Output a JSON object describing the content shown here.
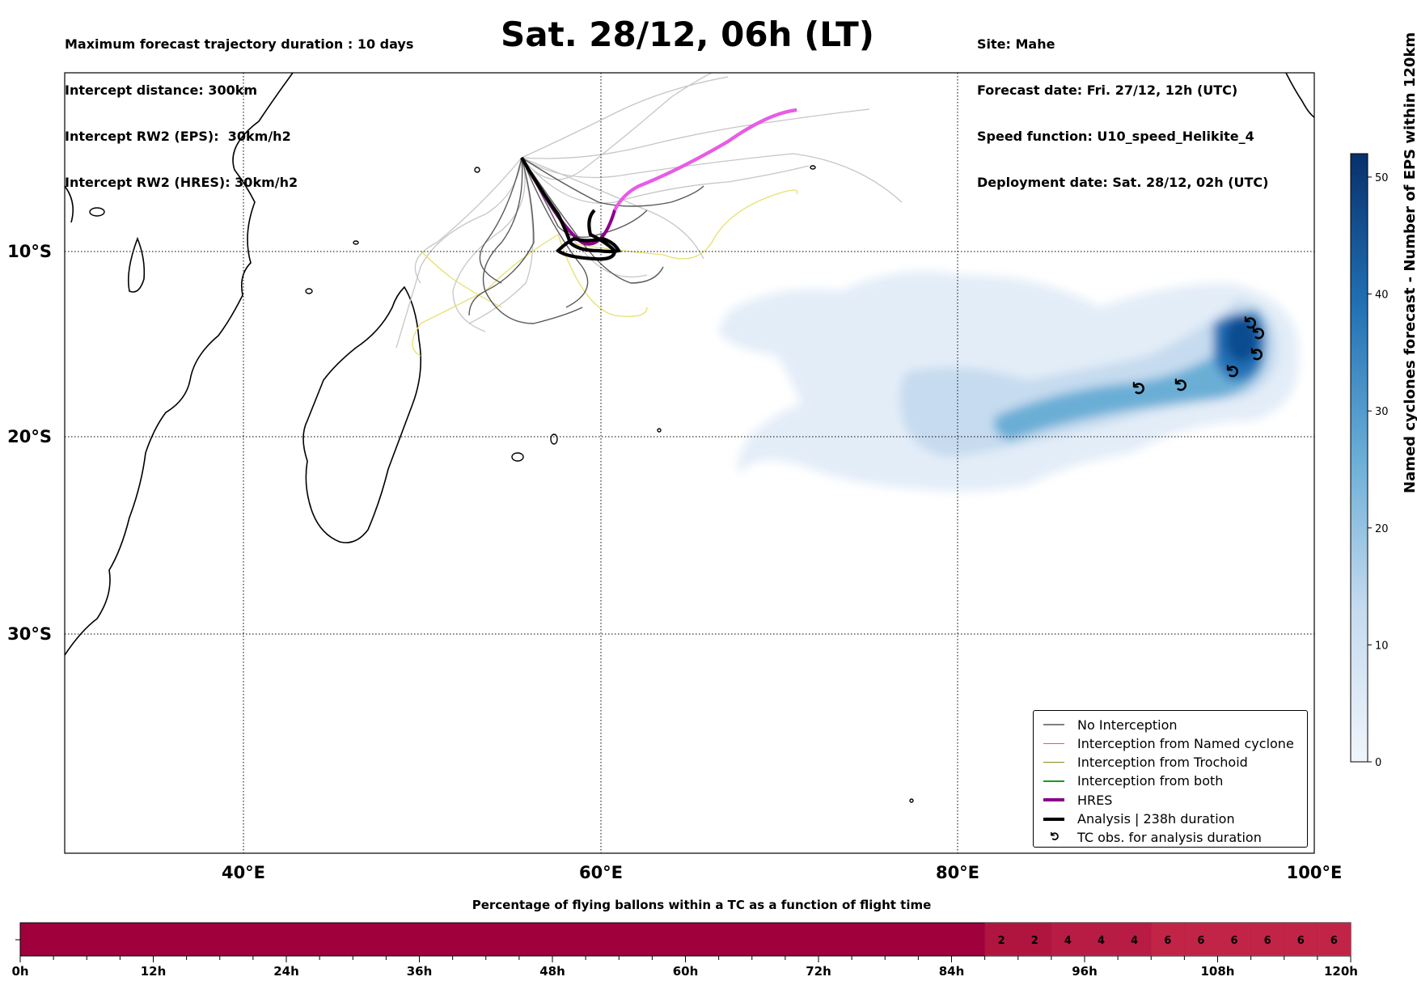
{
  "header": {
    "left_lines": [
      "Maximum forecast trajectory duration : 10 days",
      "Intercept distance: 300km",
      "Intercept RW2 (EPS):  30km/h2",
      "Intercept RW2 (HRES): 30km/h2"
    ],
    "title": "Sat. 28/12, 06h (LT)",
    "right_lines": [
      "Site: Mahe",
      "Forecast date: Fri. 27/12, 12h (UTC)",
      "Speed function: U10_speed_Helikite_4",
      "Deployment date: Sat. 28/12, 02h (UTC)"
    ]
  },
  "map": {
    "lon_ticks": [
      "40°E",
      "60°E",
      "80°E",
      "100°E"
    ],
    "lat_ticks": [
      "10°S",
      "20°S",
      "30°S"
    ]
  },
  "legend": {
    "items": [
      {
        "label": "No Interception",
        "color": "#808080",
        "style": "thin"
      },
      {
        "label": "Interception from Named cyclone",
        "color": "#ff5a1f",
        "style": "thin"
      },
      {
        "label": "Interception from Trochoid",
        "color": "#8a8a1f",
        "style": "thin"
      },
      {
        "label": "Interception from both",
        "color": "#1a9a1a",
        "style": "thin"
      },
      {
        "label": "HRES",
        "color": "#8b008b",
        "style": "thick"
      },
      {
        "label": "Analysis | 238h duration",
        "color": "#000000",
        "style": "thick"
      },
      {
        "label": "TC obs. for analysis duration",
        "color": "#000000",
        "style": "symbol",
        "symbol": "cyclone-icon"
      }
    ]
  },
  "colorbar": {
    "title": "Named cyclones forecast - Number of EPS within 120km",
    "ticks": [
      "0",
      "10",
      "20",
      "30",
      "40",
      "50"
    ],
    "color_low": "#f0f5fc",
    "color_high": "#08306b"
  },
  "bottom_bar": {
    "title": "Percentage of flying ballons within a TC as a function of flight time",
    "ticks": [
      "0h",
      "12h",
      "24h",
      "36h",
      "48h",
      "60h",
      "72h",
      "84h",
      "96h",
      "108h",
      "120h"
    ],
    "cell_labels": [
      "2",
      "2",
      "4",
      "4",
      "4",
      "6",
      "6",
      "6",
      "6",
      "6",
      "6"
    ],
    "base_color": "#a0003c",
    "level2_color": "#b01540",
    "level4_color": "#b81c44",
    "level6_color": "#c22448"
  }
}
